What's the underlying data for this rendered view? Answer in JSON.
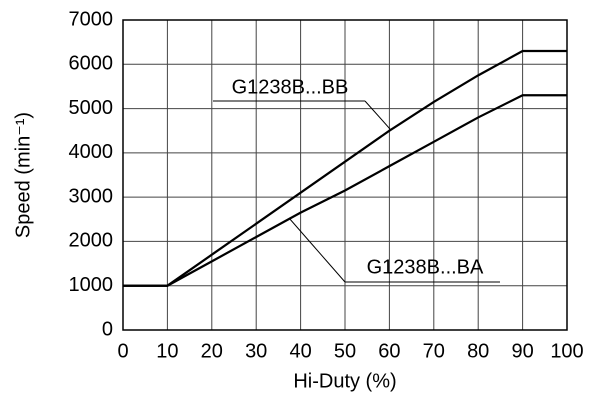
{
  "chart_data": {
    "type": "line",
    "x_label": "Hi-Duty (%)",
    "y_label": "Speed (min⁻¹)",
    "xlim": [
      0,
      100
    ],
    "xticks": [
      0,
      10,
      20,
      30,
      40,
      50,
      60,
      70,
      80,
      90,
      100
    ],
    "ylim": [
      0,
      7000
    ],
    "yticks": [
      0,
      1000,
      2000,
      3000,
      4000,
      5000,
      6000,
      7000
    ],
    "grid": true,
    "x": [
      0,
      10,
      20,
      30,
      40,
      50,
      60,
      70,
      80,
      90,
      100
    ],
    "series": [
      {
        "name": "G1238B...BB",
        "color": "#000000",
        "values": [
          1000,
          1000,
          1700,
          2400,
          3100,
          3800,
          4500,
          5150,
          5750,
          6300,
          6300
        ]
      },
      {
        "name": "G1238B...BA",
        "color": "#000000",
        "values": [
          1000,
          1000,
          1550,
          2100,
          2650,
          3150,
          3700,
          4250,
          4800,
          5300,
          5300
        ]
      }
    ]
  }
}
